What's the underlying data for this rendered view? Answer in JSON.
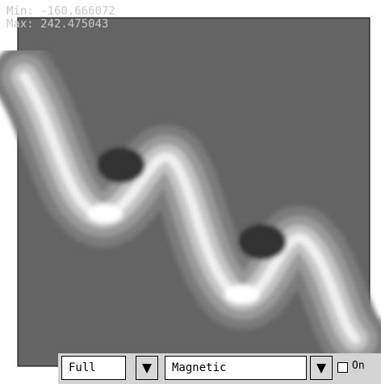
{
  "overlay": {
    "min": "Min: -160.666072",
    "max": "Max: 242.475043"
  },
  "controls": {
    "range": "Full",
    "field": "Magnetic",
    "toggle": "On"
  }
}
